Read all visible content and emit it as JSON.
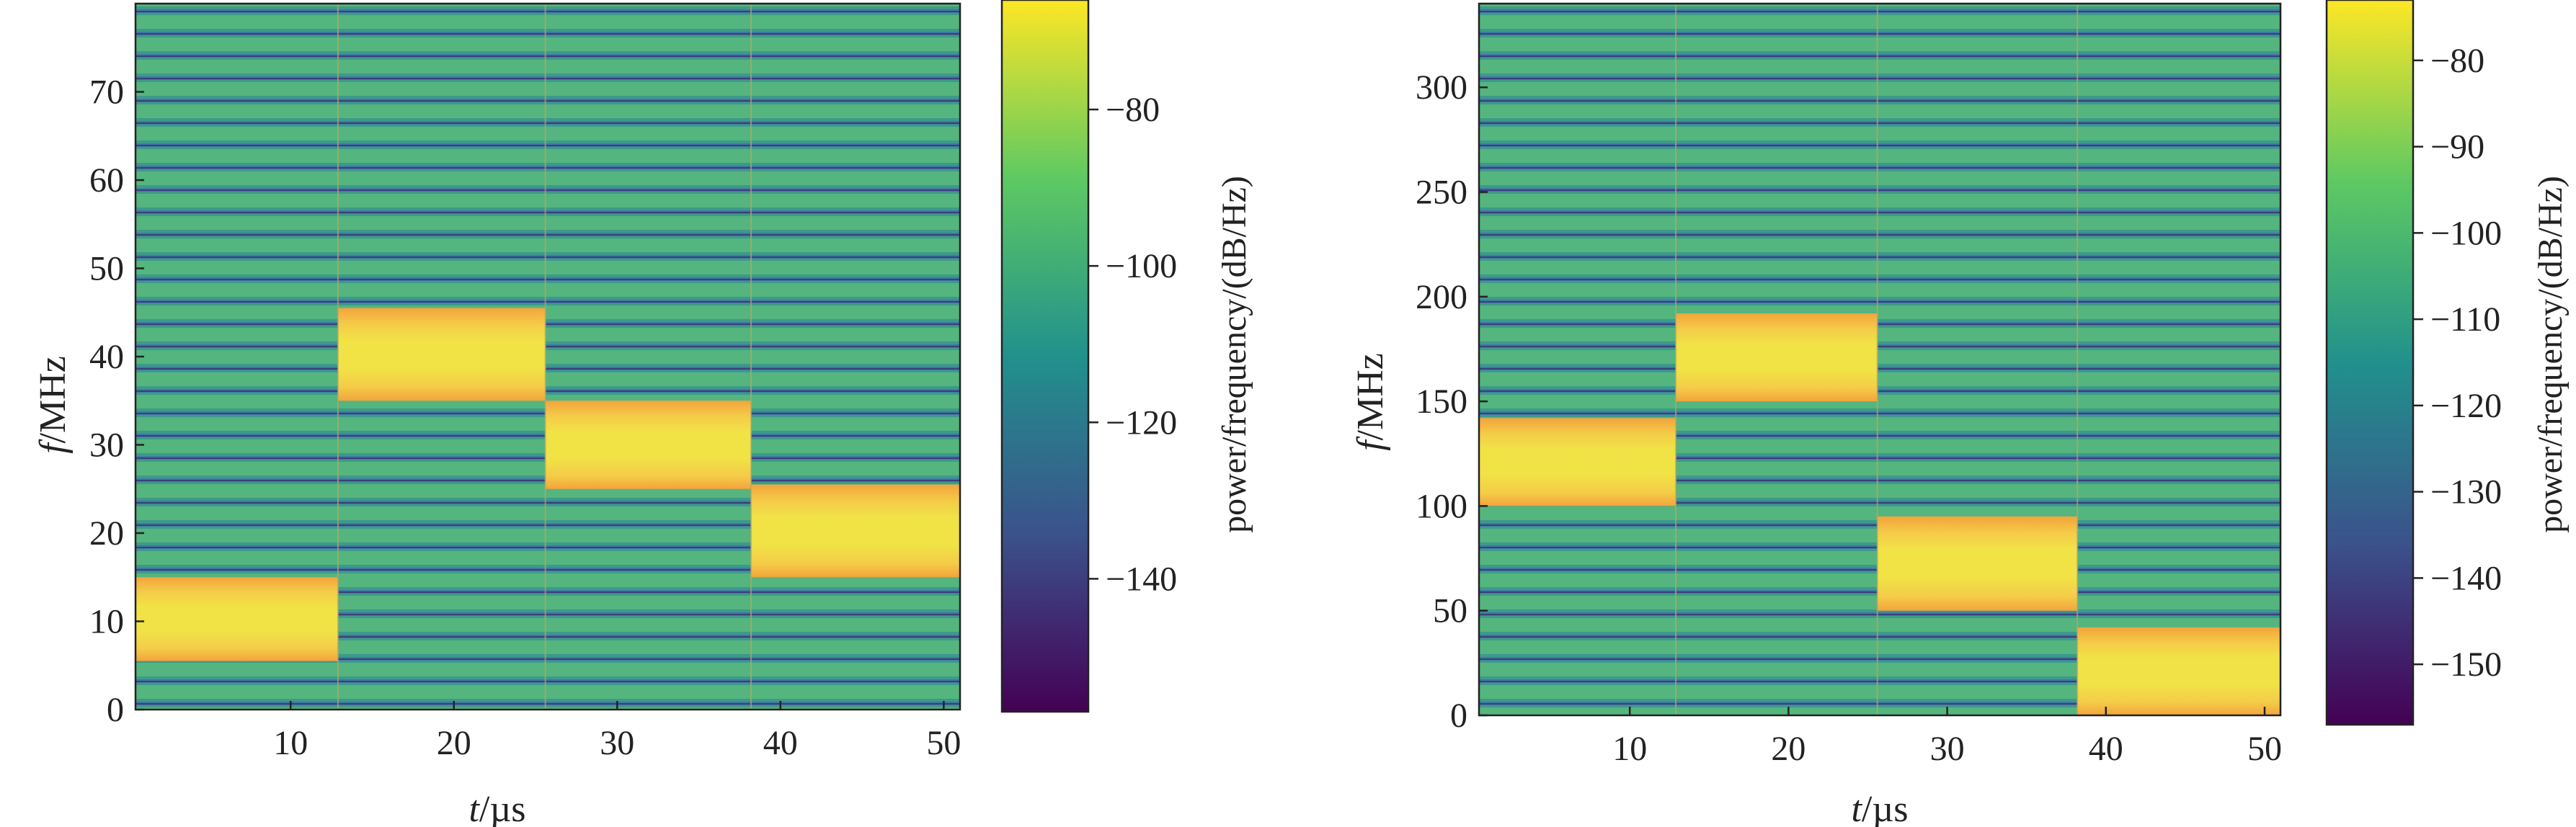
{
  "chart_data": [
    {
      "type": "heatmap",
      "title": "",
      "xlabel_italic": "t",
      "xlabel_unit": "/µs",
      "ylabel_italic": "f",
      "ylabel_unit": "/MHz",
      "xlim": [
        0.5,
        51
      ],
      "ylim": [
        0,
        80
      ],
      "xticks": [
        10,
        20,
        30,
        40,
        50
      ],
      "yticks": [
        0,
        10,
        20,
        30,
        40,
        50,
        60,
        70
      ],
      "segments": [
        {
          "t_start": 0.5,
          "t_end": 12.9,
          "f_low": 5.5,
          "f_high": 15.0
        },
        {
          "t_start": 12.9,
          "t_end": 25.6,
          "f_low": 35.0,
          "f_high": 45.5
        },
        {
          "t_start": 25.6,
          "t_end": 38.2,
          "f_low": 25.0,
          "f_high": 35.0
        },
        {
          "t_start": 38.2,
          "t_end": 51,
          "f_low": 15.0,
          "f_high": 25.5
        }
      ],
      "colorbar": {
        "label": "power/frequency/(dB/Hz)",
        "range": [
          -157,
          -66
        ],
        "ticks": [
          -140,
          -120,
          -100,
          -80
        ]
      }
    },
    {
      "type": "heatmap",
      "title": "",
      "xlabel_italic": "t",
      "xlabel_unit": "/µs",
      "ylabel_italic": "f",
      "ylabel_unit": "/MHz",
      "xlim": [
        0.5,
        51
      ],
      "ylim": [
        0,
        340
      ],
      "xticks": [
        10,
        20,
        30,
        40,
        50
      ],
      "yticks": [
        0,
        50,
        100,
        150,
        200,
        250,
        300
      ],
      "segments": [
        {
          "t_start": 0.5,
          "t_end": 12.9,
          "f_low": 100.0,
          "f_high": 142.0
        },
        {
          "t_start": 12.9,
          "t_end": 25.6,
          "f_low": 150.0,
          "f_high": 192.0
        },
        {
          "t_start": 25.6,
          "t_end": 38.2,
          "f_low": 50.0,
          "f_high": 95.0
        },
        {
          "t_start": 38.2,
          "t_end": 51,
          "f_low": 0.0,
          "f_high": 42.0
        }
      ],
      "colorbar": {
        "label": "power/frequency/(dB/Hz)",
        "range": [
          -157,
          -73
        ],
        "ticks": [
          -150,
          -140,
          -130,
          -120,
          -110,
          -100,
          -90,
          -80
        ]
      }
    }
  ],
  "colors": {
    "viridis": [
      "#440154",
      "#3b528b",
      "#21918c",
      "#5ec962",
      "#fde725"
    ],
    "plasma_band": [
      "#f0a53c",
      "#f6d04a",
      "#f0e244"
    ],
    "background_teal": "#3d9a8a",
    "stripe_dark": "#3c3f7a",
    "stripe_mid": "#3f79a0",
    "stripe_light": "#55b57e"
  }
}
